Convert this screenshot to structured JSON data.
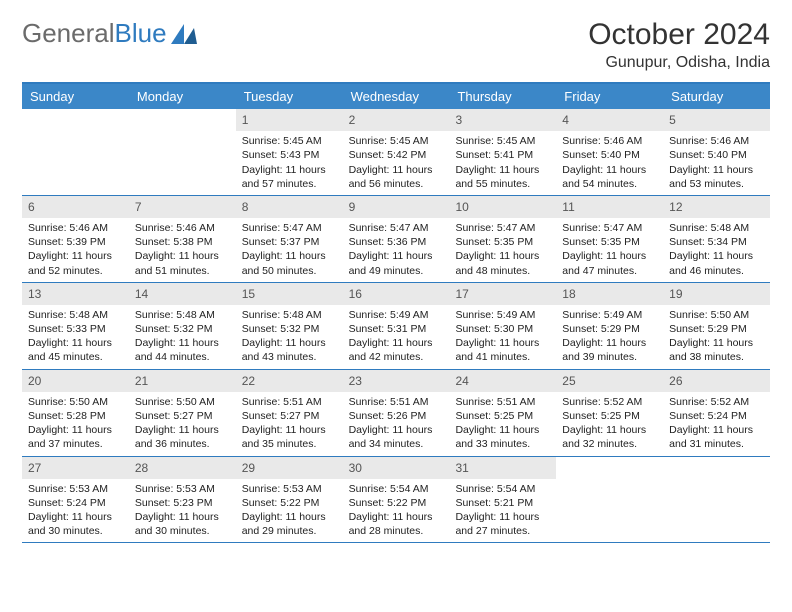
{
  "logo": {
    "text1": "General",
    "text2": "Blue"
  },
  "title": "October 2024",
  "location": "Gunupur, Odisha, India",
  "colors": {
    "header_bg": "#3b87c8",
    "border": "#2f7bbf",
    "daynum_bg": "#e9e9e9",
    "text": "#222222",
    "logo_gray": "#6b6b6b"
  },
  "dayHeaders": [
    "Sunday",
    "Monday",
    "Tuesday",
    "Wednesday",
    "Thursday",
    "Friday",
    "Saturday"
  ],
  "weeks": [
    [
      {
        "empty": true
      },
      {
        "empty": true
      },
      {
        "num": "1",
        "sunrise": "5:45 AM",
        "sunset": "5:43 PM",
        "daylight": "11 hours and 57 minutes."
      },
      {
        "num": "2",
        "sunrise": "5:45 AM",
        "sunset": "5:42 PM",
        "daylight": "11 hours and 56 minutes."
      },
      {
        "num": "3",
        "sunrise": "5:45 AM",
        "sunset": "5:41 PM",
        "daylight": "11 hours and 55 minutes."
      },
      {
        "num": "4",
        "sunrise": "5:46 AM",
        "sunset": "5:40 PM",
        "daylight": "11 hours and 54 minutes."
      },
      {
        "num": "5",
        "sunrise": "5:46 AM",
        "sunset": "5:40 PM",
        "daylight": "11 hours and 53 minutes."
      }
    ],
    [
      {
        "num": "6",
        "sunrise": "5:46 AM",
        "sunset": "5:39 PM",
        "daylight": "11 hours and 52 minutes."
      },
      {
        "num": "7",
        "sunrise": "5:46 AM",
        "sunset": "5:38 PM",
        "daylight": "11 hours and 51 minutes."
      },
      {
        "num": "8",
        "sunrise": "5:47 AM",
        "sunset": "5:37 PM",
        "daylight": "11 hours and 50 minutes."
      },
      {
        "num": "9",
        "sunrise": "5:47 AM",
        "sunset": "5:36 PM",
        "daylight": "11 hours and 49 minutes."
      },
      {
        "num": "10",
        "sunrise": "5:47 AM",
        "sunset": "5:35 PM",
        "daylight": "11 hours and 48 minutes."
      },
      {
        "num": "11",
        "sunrise": "5:47 AM",
        "sunset": "5:35 PM",
        "daylight": "11 hours and 47 minutes."
      },
      {
        "num": "12",
        "sunrise": "5:48 AM",
        "sunset": "5:34 PM",
        "daylight": "11 hours and 46 minutes."
      }
    ],
    [
      {
        "num": "13",
        "sunrise": "5:48 AM",
        "sunset": "5:33 PM",
        "daylight": "11 hours and 45 minutes."
      },
      {
        "num": "14",
        "sunrise": "5:48 AM",
        "sunset": "5:32 PM",
        "daylight": "11 hours and 44 minutes."
      },
      {
        "num": "15",
        "sunrise": "5:48 AM",
        "sunset": "5:32 PM",
        "daylight": "11 hours and 43 minutes."
      },
      {
        "num": "16",
        "sunrise": "5:49 AM",
        "sunset": "5:31 PM",
        "daylight": "11 hours and 42 minutes."
      },
      {
        "num": "17",
        "sunrise": "5:49 AM",
        "sunset": "5:30 PM",
        "daylight": "11 hours and 41 minutes."
      },
      {
        "num": "18",
        "sunrise": "5:49 AM",
        "sunset": "5:29 PM",
        "daylight": "11 hours and 39 minutes."
      },
      {
        "num": "19",
        "sunrise": "5:50 AM",
        "sunset": "5:29 PM",
        "daylight": "11 hours and 38 minutes."
      }
    ],
    [
      {
        "num": "20",
        "sunrise": "5:50 AM",
        "sunset": "5:28 PM",
        "daylight": "11 hours and 37 minutes."
      },
      {
        "num": "21",
        "sunrise": "5:50 AM",
        "sunset": "5:27 PM",
        "daylight": "11 hours and 36 minutes."
      },
      {
        "num": "22",
        "sunrise": "5:51 AM",
        "sunset": "5:27 PM",
        "daylight": "11 hours and 35 minutes."
      },
      {
        "num": "23",
        "sunrise": "5:51 AM",
        "sunset": "5:26 PM",
        "daylight": "11 hours and 34 minutes."
      },
      {
        "num": "24",
        "sunrise": "5:51 AM",
        "sunset": "5:25 PM",
        "daylight": "11 hours and 33 minutes."
      },
      {
        "num": "25",
        "sunrise": "5:52 AM",
        "sunset": "5:25 PM",
        "daylight": "11 hours and 32 minutes."
      },
      {
        "num": "26",
        "sunrise": "5:52 AM",
        "sunset": "5:24 PM",
        "daylight": "11 hours and 31 minutes."
      }
    ],
    [
      {
        "num": "27",
        "sunrise": "5:53 AM",
        "sunset": "5:24 PM",
        "daylight": "11 hours and 30 minutes."
      },
      {
        "num": "28",
        "sunrise": "5:53 AM",
        "sunset": "5:23 PM",
        "daylight": "11 hours and 30 minutes."
      },
      {
        "num": "29",
        "sunrise": "5:53 AM",
        "sunset": "5:22 PM",
        "daylight": "11 hours and 29 minutes."
      },
      {
        "num": "30",
        "sunrise": "5:54 AM",
        "sunset": "5:22 PM",
        "daylight": "11 hours and 28 minutes."
      },
      {
        "num": "31",
        "sunrise": "5:54 AM",
        "sunset": "5:21 PM",
        "daylight": "11 hours and 27 minutes."
      },
      {
        "empty": true
      },
      {
        "empty": true
      }
    ]
  ],
  "labels": {
    "sunrise": "Sunrise: ",
    "sunset": "Sunset: ",
    "daylight": "Daylight: "
  }
}
